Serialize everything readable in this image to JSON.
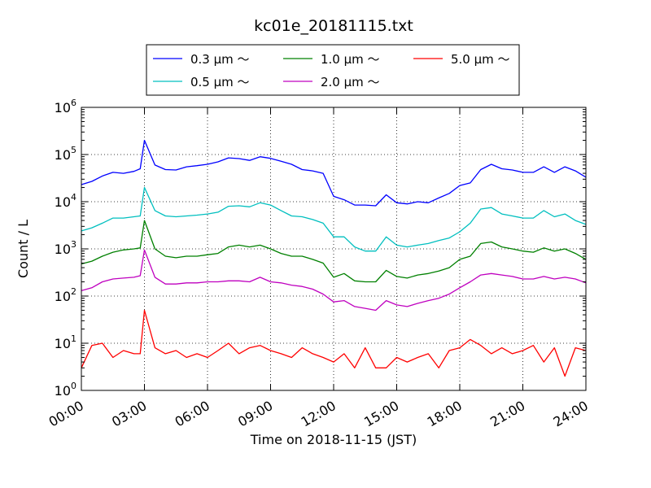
{
  "chart_data": {
    "type": "line",
    "title": "kc01e_20181115.txt",
    "xlabel": "Time on 2018-11-15 (JST)",
    "ylabel": "Count / L",
    "yscale": "log",
    "xlim": [
      0,
      24
    ],
    "ylim": [
      1,
      1000000
    ],
    "grid": true,
    "legend_position": "top-center",
    "x_ticks": [
      "00:00",
      "03:00",
      "06:00",
      "09:00",
      "12:00",
      "15:00",
      "18:00",
      "21:00",
      "24:00"
    ],
    "y_ticks": [
      {
        "base": "10",
        "exp": "0"
      },
      {
        "base": "10",
        "exp": "1"
      },
      {
        "base": "10",
        "exp": "2"
      },
      {
        "base": "10",
        "exp": "3"
      },
      {
        "base": "10",
        "exp": "4"
      },
      {
        "base": "10",
        "exp": "5"
      },
      {
        "base": "10",
        "exp": "6"
      }
    ],
    "x_hours": [
      0,
      0.5,
      1,
      1.5,
      2,
      2.5,
      2.8,
      3,
      3.5,
      4,
      4.5,
      5,
      5.5,
      6,
      6.5,
      7,
      7.5,
      8,
      8.5,
      9,
      9.5,
      10,
      10.5,
      11,
      11.5,
      12,
      12.5,
      13,
      13.5,
      14,
      14.5,
      15,
      15.5,
      16,
      16.5,
      17,
      17.5,
      18,
      18.5,
      19,
      19.5,
      20,
      20.5,
      21,
      21.5,
      22,
      22.5,
      23,
      23.5,
      24
    ],
    "series": [
      {
        "name": "0.3 μm ～",
        "color": "#0000ff",
        "values": [
          23000,
          27000,
          35000,
          42000,
          40000,
          44000,
          50000,
          200000,
          60000,
          48000,
          47000,
          55000,
          58000,
          62000,
          70000,
          85000,
          82000,
          75000,
          90000,
          83000,
          72000,
          62000,
          48000,
          45000,
          40000,
          13000,
          11000,
          8500,
          8500,
          8200,
          14000,
          9500,
          9000,
          10000,
          9500,
          12000,
          15000,
          22000,
          25000,
          48000,
          62000,
          50000,
          47000,
          42000,
          42000,
          55000,
          42000,
          55000,
          45000,
          33000
        ]
      },
      {
        "name": "0.5 μm ～",
        "color": "#00bfbf",
        "values": [
          2400,
          2800,
          3500,
          4500,
          4500,
          4800,
          5000,
          20000,
          6500,
          5000,
          4800,
          5000,
          5200,
          5500,
          6000,
          8000,
          8200,
          7800,
          9500,
          8500,
          6500,
          5000,
          4800,
          4200,
          3500,
          1800,
          1800,
          1100,
          900,
          900,
          1800,
          1200,
          1100,
          1200,
          1300,
          1500,
          1700,
          2300,
          3500,
          7000,
          7500,
          5500,
          5000,
          4500,
          4500,
          6500,
          4800,
          5500,
          4000,
          3300
        ]
      },
      {
        "name": "1.0 μm ～",
        "color": "#008000",
        "values": [
          480,
          550,
          700,
          850,
          950,
          1000,
          1050,
          4000,
          1000,
          700,
          650,
          700,
          700,
          750,
          800,
          1100,
          1200,
          1100,
          1200,
          1000,
          800,
          700,
          700,
          600,
          500,
          250,
          300,
          210,
          200,
          200,
          350,
          260,
          240,
          280,
          300,
          340,
          400,
          600,
          700,
          1300,
          1400,
          1100,
          1000,
          900,
          850,
          1050,
          900,
          1000,
          800,
          600
        ]
      },
      {
        "name": "2.0 μm ～",
        "color": "#bf00bf",
        "values": [
          130,
          150,
          200,
          230,
          240,
          250,
          270,
          950,
          250,
          180,
          180,
          190,
          190,
          200,
          200,
          210,
          210,
          200,
          250,
          200,
          190,
          170,
          160,
          140,
          110,
          75,
          80,
          60,
          55,
          50,
          80,
          65,
          60,
          70,
          80,
          90,
          110,
          150,
          200,
          280,
          300,
          280,
          260,
          230,
          230,
          260,
          230,
          250,
          230,
          190
        ]
      },
      {
        "name": "5.0 μm ～",
        "color": "#ff0000",
        "values": [
          3,
          9,
          10,
          5,
          7,
          6,
          6,
          50,
          8,
          6,
          7,
          5,
          6,
          5,
          7,
          10,
          6,
          8,
          9,
          7,
          6,
          5,
          8,
          6,
          5,
          4,
          6,
          3,
          8,
          3,
          3,
          5,
          4,
          5,
          6,
          3,
          7,
          8,
          12,
          9,
          6,
          8,
          6,
          7,
          9,
          4,
          8,
          2,
          8,
          7
        ]
      }
    ]
  }
}
